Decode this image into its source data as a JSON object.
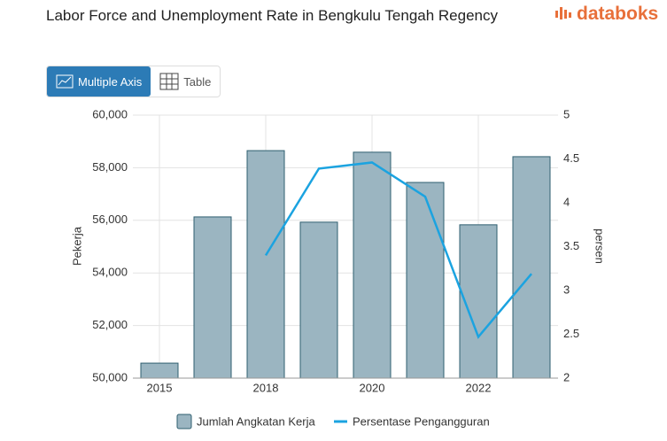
{
  "header": {
    "title": "Labor Force and Unemployment Rate in Bengkulu Tengah Regency",
    "logo": "databoks"
  },
  "tabs": [
    "Multiple Axis",
    "Table"
  ],
  "chart_data": {
    "type": "bar-line",
    "categories": [
      "2015",
      null,
      "2018",
      null,
      "2020",
      null,
      "2022",
      null
    ],
    "series": [
      {
        "name": "Jumlah Angkatan Kerja",
        "type": "bar",
        "color": "#9bb5c1",
        "values": [
          50570,
          56130,
          58650,
          55930,
          58590,
          57440,
          55830,
          58420
        ]
      },
      {
        "name": "Persentase Pengangguran",
        "type": "line",
        "axis": "y2",
        "color": "#1ba3e0",
        "values": [
          null,
          null,
          3.4,
          4.39,
          4.46,
          4.07,
          2.47,
          3.19
        ]
      }
    ],
    "ylabel": "Pekerja",
    "y2label": "persen",
    "ylim": [
      50000,
      60000
    ],
    "yticks": [
      {
        "value": 50000,
        "label": "50,000"
      },
      {
        "value": 52000,
        "label": "52,000"
      },
      {
        "value": 54000,
        "label": "54,000"
      },
      {
        "value": 56000,
        "label": "56,000"
      },
      {
        "value": 58000,
        "label": "58,000"
      },
      {
        "value": 60000,
        "label": "60,000"
      }
    ],
    "y2lim": [
      2,
      5
    ],
    "y2ticks": [
      2,
      2.5,
      3,
      3.5,
      4,
      4.5,
      5
    ],
    "grid": true
  }
}
